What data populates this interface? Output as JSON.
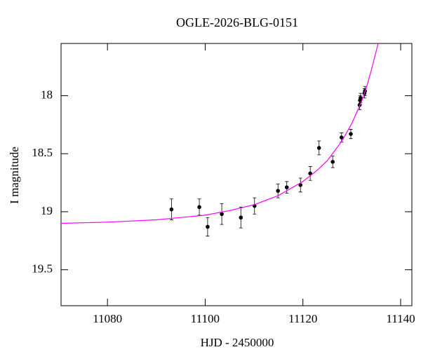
{
  "chart_data": {
    "type": "scatter",
    "title": "OGLE-2026-BLG-0151",
    "x_label": "HJD - 2450000",
    "y_label": "I magnitude",
    "xlim": [
      11070.5,
      11142.3
    ],
    "ylim": [
      19.81,
      17.55
    ],
    "xticks": [
      11080,
      11100,
      11120,
      11140
    ],
    "yticks": [
      18,
      18.5,
      19,
      19.5
    ],
    "series": [
      {
        "type": "scatter",
        "color": "#000000",
        "x": [
          11093.1,
          11098.8,
          11100.5,
          11103.4,
          11107.3,
          11110.1,
          11114.9,
          11116.7,
          11119.5,
          11121.5,
          11123.3,
          11126.1,
          11127.9,
          11129.8,
          11131.6,
          11131.7,
          11131.8,
          11132.6,
          11132.7
        ],
        "y": [
          18.98,
          18.96,
          19.13,
          19.02,
          19.05,
          18.95,
          18.82,
          18.79,
          18.77,
          18.67,
          18.45,
          18.57,
          18.36,
          18.33,
          18.08,
          18.04,
          18.02,
          17.98,
          17.96
        ],
        "err": [
          0.09,
          0.07,
          0.08,
          0.09,
          0.09,
          0.07,
          0.06,
          0.05,
          0.06,
          0.06,
          0.06,
          0.05,
          0.04,
          0.04,
          0.04,
          0.04,
          0.04,
          0.04,
          0.04
        ]
      },
      {
        "type": "line",
        "color": "#ff00ff",
        "x": [
          11070.5,
          11080,
          11090,
          11100,
          11105,
          11110,
          11115,
          11120,
          11123,
          11125,
          11128,
          11130,
          11132,
          11133,
          11134,
          11135.4
        ],
        "y": [
          19.1,
          19.09,
          19.07,
          19.03,
          18.99,
          18.94,
          18.86,
          18.74,
          18.64,
          18.56,
          18.39,
          18.24,
          18.05,
          17.93,
          17.78,
          17.55
        ]
      }
    ]
  }
}
